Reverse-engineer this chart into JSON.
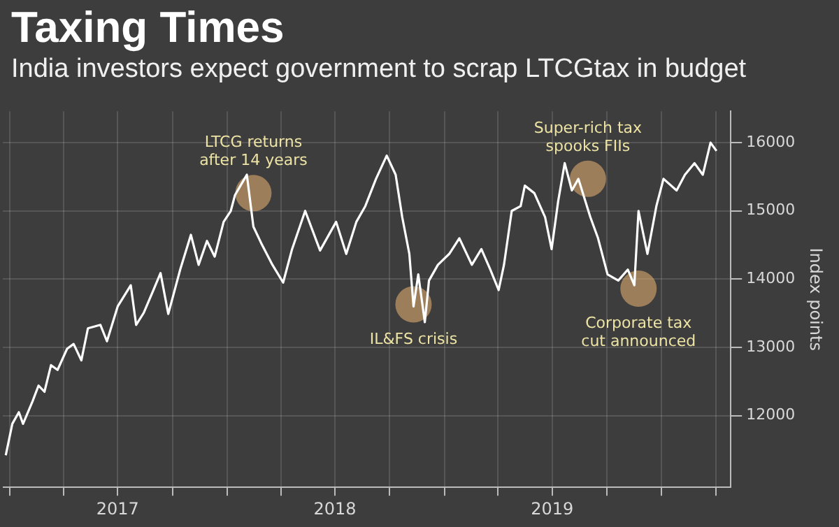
{
  "chart_data": {
    "type": "line",
    "title": "Taxing Times",
    "subtitle": "India investors expect government to scrap LTCGtax in budget",
    "ylabel": "Index points",
    "x": [
      "2016-12-25",
      "2017-01-05",
      "2017-01-16",
      "2017-01-23",
      "2017-02-08",
      "2017-02-18",
      "2017-02-28",
      "2017-03-11",
      "2017-03-22",
      "2017-04-07",
      "2017-04-18",
      "2017-05-01",
      "2017-05-12",
      "2017-06-02",
      "2017-06-13",
      "2017-07-01",
      "2017-07-23",
      "2017-08-01",
      "2017-08-14",
      "2017-08-30",
      "2017-09-11",
      "2017-09-24",
      "2017-10-14",
      "2017-11-01",
      "2017-11-14",
      "2017-11-28",
      "2017-12-11",
      "2017-12-26",
      "2018-01-07",
      "2018-01-14",
      "2018-02-03",
      "2018-02-14",
      "2018-02-27",
      "2018-03-18",
      "2018-04-05",
      "2018-04-20",
      "2018-05-12",
      "2018-06-06",
      "2018-07-03",
      "2018-07-20",
      "2018-08-06",
      "2018-08-21",
      "2018-09-08",
      "2018-09-26",
      "2018-10-11",
      "2018-10-22",
      "2018-11-03",
      "2018-11-10",
      "2018-11-18",
      "2018-11-29",
      "2018-12-06",
      "2018-12-21",
      "2019-01-09",
      "2019-01-26",
      "2019-02-16",
      "2019-03-04",
      "2019-03-19",
      "2019-04-02",
      "2019-04-11",
      "2019-04-24",
      "2019-05-09",
      "2019-05-16",
      "2019-06-01",
      "2019-06-19",
      "2019-06-30",
      "2019-07-11",
      "2019-07-22",
      "2019-08-03",
      "2019-08-14",
      "2019-09-03",
      "2019-09-16",
      "2019-10-02",
      "2019-10-20",
      "2019-11-05",
      "2019-11-16",
      "2019-11-23",
      "2019-12-08",
      "2019-12-23",
      "2020-01-04",
      "2020-01-26",
      "2020-02-09",
      "2020-02-25",
      "2020-03-10",
      "2020-03-23",
      "2020-04-02"
    ],
    "series": [
      {
        "color": "#ffffff",
        "values": [
          11420,
          11880,
          12050,
          11880,
          12210,
          12440,
          12350,
          12740,
          12670,
          12980,
          13050,
          12810,
          13280,
          13330,
          13090,
          13600,
          13910,
          13330,
          13510,
          13840,
          14090,
          13490,
          14140,
          14650,
          14210,
          14560,
          14330,
          14840,
          15000,
          15230,
          15530,
          14770,
          14530,
          14210,
          13950,
          14440,
          15000,
          14420,
          14840,
          14370,
          14840,
          15070,
          15470,
          15810,
          15530,
          14910,
          14370,
          13600,
          14070,
          13370,
          13980,
          14210,
          14370,
          14600,
          14210,
          14440,
          14140,
          13840,
          14210,
          15000,
          15070,
          15370,
          15260,
          14910,
          14440,
          15140,
          15700,
          15300,
          15470,
          14910,
          14600,
          14070,
          13980,
          14140,
          13910,
          15000,
          14370,
          15070,
          15470,
          15300,
          15530,
          15700,
          15530,
          16000,
          15880
        ]
      }
    ],
    "xlim": [
      "2016-12-20",
      "2020-04-26"
    ],
    "xticks": [
      {
        "value": "2017-01-01",
        "label": null
      },
      {
        "value": "2017-04-01",
        "label": null
      },
      {
        "value": "2017-07-01",
        "label": "2017"
      },
      {
        "value": "2017-10-01",
        "label": null
      },
      {
        "value": "2018-01-01",
        "label": null
      },
      {
        "value": "2018-04-01",
        "label": null
      },
      {
        "value": "2018-07-01",
        "label": "2018"
      },
      {
        "value": "2018-10-01",
        "label": null
      },
      {
        "value": "2019-01-01",
        "label": null
      },
      {
        "value": "2019-04-01",
        "label": null
      },
      {
        "value": "2019-07-01",
        "label": "2019"
      },
      {
        "value": "2019-10-01",
        "label": null
      },
      {
        "value": "2020-01-01",
        "label": null
      },
      {
        "value": "2020-04-01",
        "label": null
      }
    ],
    "ylim": [
      10950,
      16460
    ],
    "yticks": [
      12000,
      13000,
      14000,
      15000,
      16000
    ],
    "grid": true,
    "legend": false,
    "marker": "none",
    "line_style": "solid",
    "annotations": [
      {
        "text": "LTCG returns after 14 years",
        "x": "2018-02-14",
        "y": 15260
      },
      {
        "text": "IL&FS crisis",
        "x": "2018-11-10",
        "y": 13630
      },
      {
        "text": "Super-rich tax spooks FIIs",
        "x": "2019-08-30",
        "y": 15470
      },
      {
        "text": "Corporate tax cut announced",
        "x": "2019-11-23",
        "y": 13860
      }
    ]
  }
}
